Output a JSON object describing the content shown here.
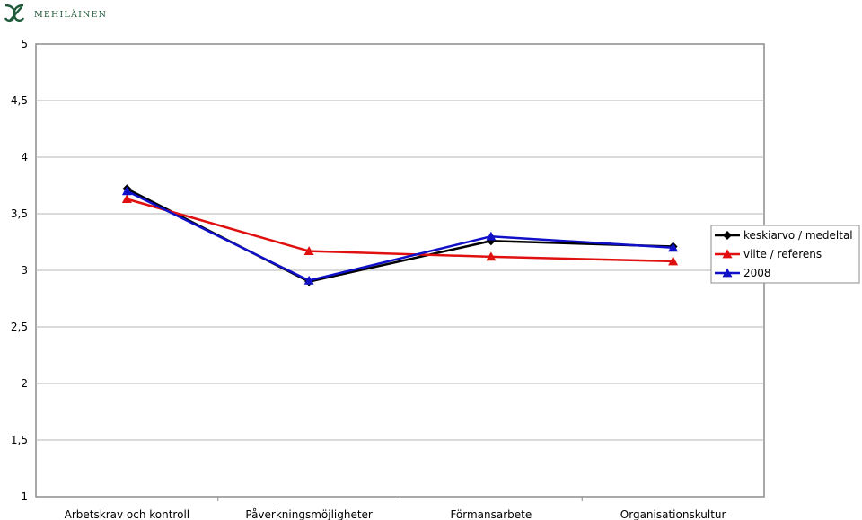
{
  "brand": {
    "name": "MEHILÄINEN",
    "logo_color": "#1f5a3a"
  },
  "chart_data": {
    "type": "line",
    "categories": [
      "Arbetskrav och kontroll",
      "Påverkningsmöjligheter",
      "Förmansarbete",
      "Organisationskultur"
    ],
    "ylim": [
      1,
      5
    ],
    "yticks": [
      "1",
      "1,5",
      "2",
      "2,5",
      "3",
      "3,5",
      "4",
      "4,5",
      "5"
    ],
    "grid": true,
    "legend_position": "right",
    "series": [
      {
        "name": "keskiarvo / medeltal",
        "values": [
          3.72,
          2.9,
          3.26,
          3.21
        ],
        "color": "#000000",
        "marker": "diamond"
      },
      {
        "name": "viite / referens",
        "values": [
          3.63,
          3.17,
          3.12,
          3.08
        ],
        "color": "#e01010",
        "marker": "triangle"
      },
      {
        "name": "2008",
        "values": [
          3.7,
          2.91,
          3.3,
          3.2
        ],
        "color": "#1010c8",
        "marker": "triangle"
      }
    ]
  }
}
